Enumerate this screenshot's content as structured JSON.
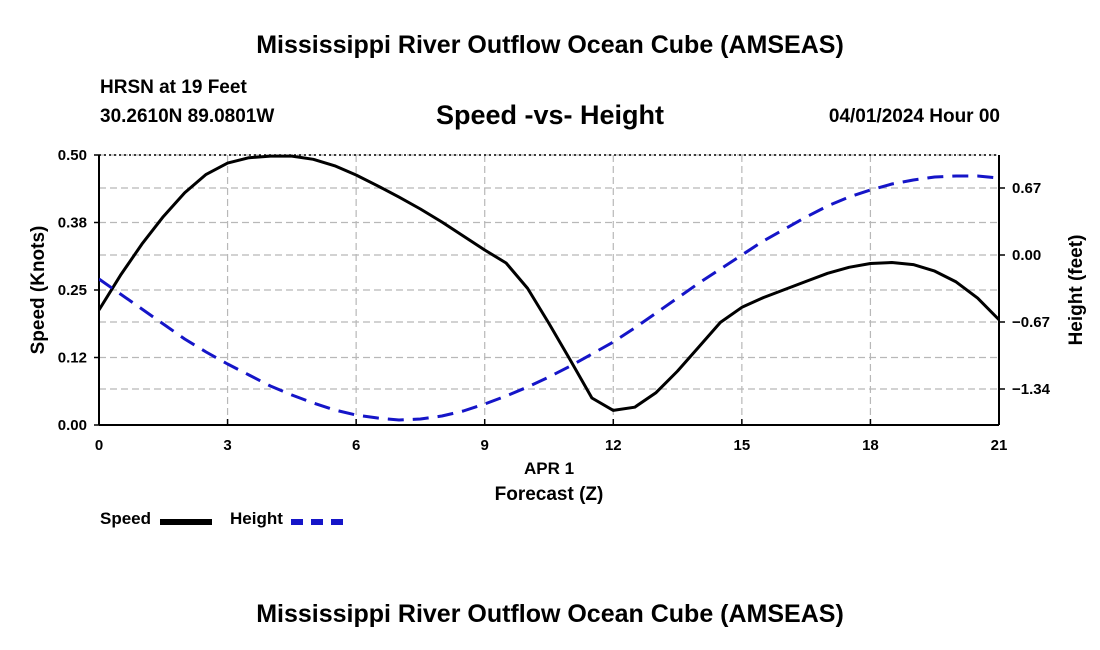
{
  "header": {
    "title": "Mississippi River Outflow Ocean Cube (AMSEAS)",
    "station": "HRSN at 19 Feet",
    "coords": "30.2610N  89.0801W",
    "date": "04/01/2024 Hour 00",
    "footer_title": "Mississippi River Outflow Ocean Cube (AMSEAS)"
  },
  "legend": {
    "speed_label": "Speed",
    "height_label": "Height"
  },
  "colors": {
    "speed": "#000000",
    "height": "#1515c8",
    "grid": "#b8b8b8"
  },
  "chart_data": {
    "type": "line",
    "title": "Speed -vs- Height",
    "xlabel": "Forecast (Z)",
    "xlabel_date": "APR 1",
    "xlim": [
      0,
      21
    ],
    "x_ticks": [
      0,
      3,
      6,
      9,
      12,
      15,
      18,
      21
    ],
    "x_tick_labels": [
      "0",
      "3",
      "6",
      "9",
      "12",
      "15",
      "18",
      "21"
    ],
    "ylabel_left": "Speed (Knots)",
    "ylim_left": [
      0,
      0.5
    ],
    "y_ticks_left": [
      0,
      0.125,
      0.25,
      0.375,
      0.5
    ],
    "y_tick_labels_left": [
      "0.00",
      "0.12",
      "0.25",
      "0.38",
      "0.50"
    ],
    "ylabel_right": "Height (feet)",
    "ylim_right": [
      -1.7,
      1.0
    ],
    "y_ticks_right": [
      -1.34,
      -0.67,
      0.0,
      0.67
    ],
    "y_tick_labels_right": [
      "−1.34",
      "−0.67",
      "0.00",
      "0.67"
    ],
    "grid": true,
    "series": [
      {
        "name": "Speed",
        "axis": "left",
        "style": "solid",
        "x": [
          0,
          0.5,
          1,
          1.5,
          2,
          2.5,
          3,
          3.5,
          4,
          4.5,
          5,
          5.5,
          6,
          6.5,
          7,
          7.5,
          8,
          8.5,
          9,
          9.5,
          10,
          10.5,
          11,
          11.5,
          12,
          12.5,
          13,
          13.5,
          14,
          14.5,
          15,
          15.5,
          16,
          16.5,
          17,
          17.5,
          18,
          18.5,
          19,
          19.5,
          20,
          20.5,
          21
        ],
        "values": [
          0.213,
          0.277,
          0.335,
          0.386,
          0.43,
          0.464,
          0.485,
          0.495,
          0.498,
          0.498,
          0.492,
          0.48,
          0.463,
          0.443,
          0.422,
          0.4,
          0.376,
          0.35,
          0.324,
          0.3,
          0.253,
          0.188,
          0.12,
          0.05,
          0.027,
          0.033,
          0.06,
          0.1,
          0.145,
          0.19,
          0.218,
          0.236,
          0.251,
          0.266,
          0.281,
          0.292,
          0.299,
          0.301,
          0.297,
          0.285,
          0.265,
          0.235,
          0.195
        ]
      },
      {
        "name": "Height",
        "axis": "right",
        "style": "dashed",
        "x": [
          0,
          0.5,
          1,
          1.5,
          2,
          2.5,
          3,
          3.5,
          4,
          4.5,
          5,
          5.5,
          6,
          6.5,
          7,
          7.5,
          8,
          8.5,
          9,
          9.5,
          10,
          10.5,
          11,
          11.5,
          12,
          12.5,
          13,
          13.5,
          14,
          14.5,
          15,
          15.5,
          16,
          16.5,
          17,
          17.5,
          18,
          18.5,
          19,
          19.5,
          20,
          20.5,
          21
        ],
        "values": [
          -0.24,
          -0.39,
          -0.54,
          -0.69,
          -0.84,
          -0.97,
          -1.09,
          -1.2,
          -1.31,
          -1.4,
          -1.48,
          -1.55,
          -1.6,
          -1.63,
          -1.65,
          -1.64,
          -1.61,
          -1.56,
          -1.49,
          -1.41,
          -1.32,
          -1.22,
          -1.11,
          -0.99,
          -0.87,
          -0.73,
          -0.58,
          -0.43,
          -0.28,
          -0.14,
          -0.0,
          0.14,
          0.26,
          0.38,
          0.49,
          0.58,
          0.65,
          0.71,
          0.75,
          0.78,
          0.79,
          0.79,
          0.77
        ]
      }
    ]
  }
}
